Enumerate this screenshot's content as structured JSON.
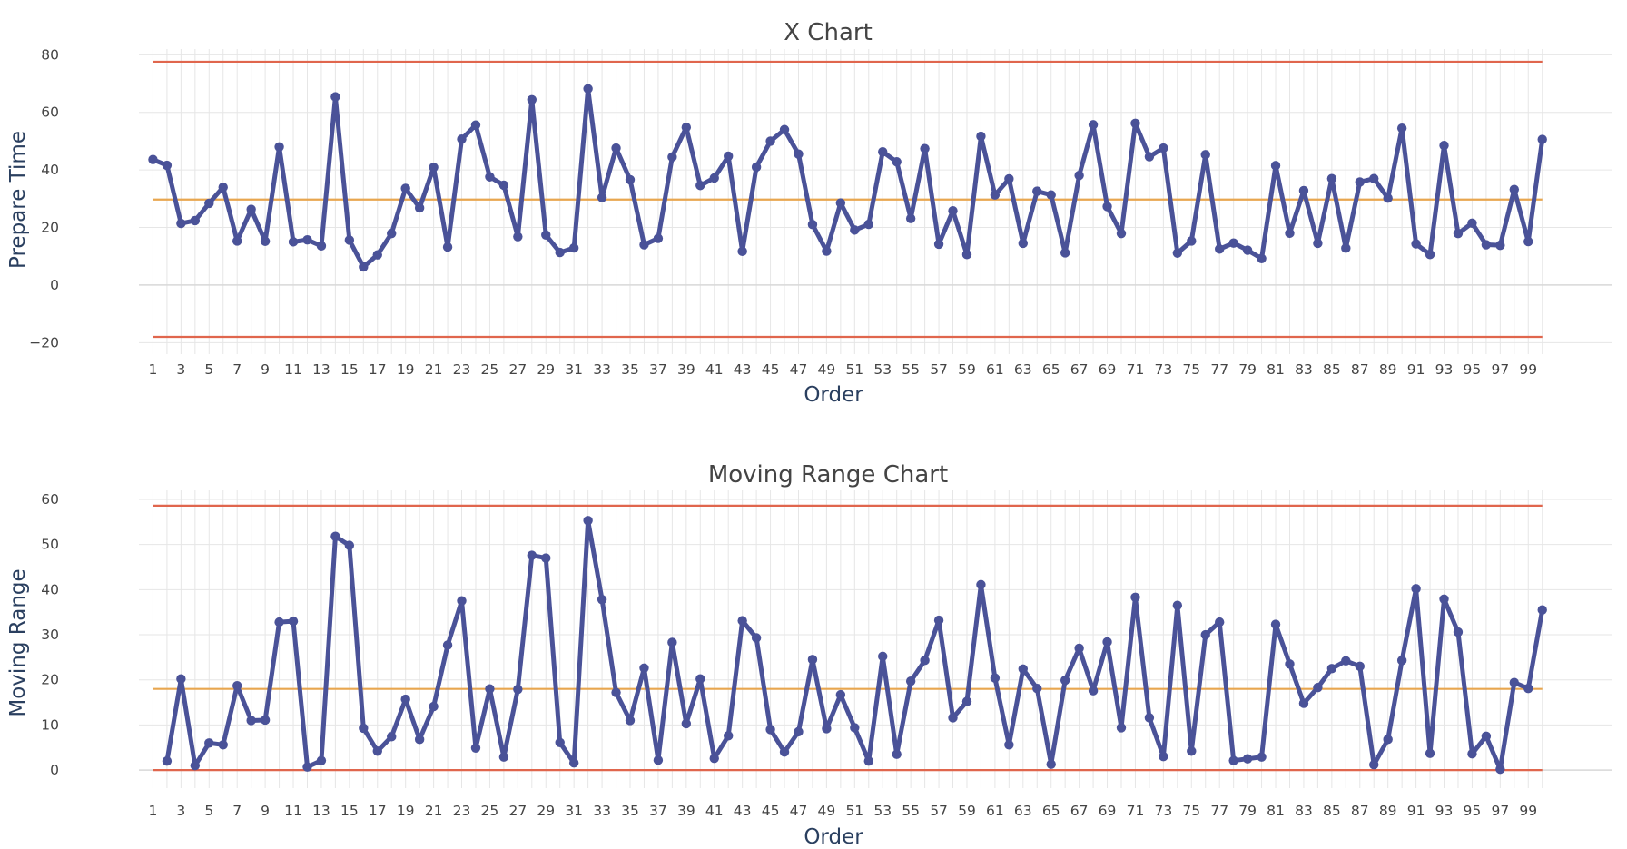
{
  "chart_data": [
    {
      "type": "line",
      "title": "X Chart",
      "xlabel": "Order",
      "ylabel": "Prepare Time",
      "ylim": [
        -24,
        82
      ],
      "yticks": [
        -20,
        0,
        20,
        40,
        60,
        80
      ],
      "xlim": [
        0,
        105
      ],
      "xticks": [
        1,
        3,
        5,
        7,
        9,
        11,
        13,
        15,
        17,
        19,
        21,
        23,
        25,
        27,
        29,
        31,
        33,
        35,
        37,
        39,
        41,
        43,
        45,
        47,
        49,
        51,
        53,
        55,
        57,
        59,
        61,
        63,
        65,
        67,
        69,
        71,
        73,
        75,
        77,
        79,
        81,
        83,
        85,
        87,
        89,
        91,
        93,
        95,
        97,
        99
      ],
      "grid": true,
      "colors": {
        "series": "#4a5298",
        "limits": "#e0664d",
        "center": "#e8a64f"
      },
      "limits": {
        "ucl": 77.6,
        "center": 29.7,
        "lcl": -18.0
      },
      "limit_span": [
        1,
        100
      ],
      "series": [
        {
          "x": [
            1,
            2,
            3,
            4,
            5,
            6,
            7,
            8,
            9,
            10,
            11,
            12,
            13,
            14,
            15,
            16,
            17,
            18,
            19,
            20,
            21,
            22,
            23,
            24,
            25,
            26,
            27,
            28,
            29,
            30,
            31,
            32,
            33,
            34,
            35,
            36,
            37,
            38,
            39,
            40,
            41,
            42,
            43,
            44,
            45,
            46,
            47,
            48,
            49,
            50,
            51,
            52,
            53,
            54,
            55,
            56,
            57,
            58,
            59,
            60,
            61,
            62,
            63,
            64,
            65,
            66,
            67,
            68,
            69,
            70,
            71,
            72,
            73,
            74,
            75,
            76,
            77,
            78,
            79,
            80,
            81,
            82,
            83,
            84,
            85,
            86,
            87,
            88,
            89,
            90,
            91,
            92,
            93,
            94,
            95,
            96,
            97,
            98,
            99,
            100
          ],
          "values": [
            43.6,
            41.6,
            21.4,
            22.4,
            28.4,
            34.0,
            15.3,
            26.3,
            15.2,
            48.0,
            15.0,
            15.7,
            13.6,
            65.4,
            15.6,
            6.3,
            10.5,
            17.9,
            33.6,
            26.8,
            40.9,
            13.2,
            50.7,
            55.6,
            37.6,
            34.7,
            16.8,
            64.4,
            17.4,
            11.3,
            12.9,
            68.2,
            30.4,
            47.6,
            36.6,
            14.0,
            16.2,
            44.5,
            54.8,
            34.6,
            37.2,
            44.8,
            11.7,
            41.0,
            50.0,
            54.0,
            45.5,
            21.0,
            11.8,
            28.5,
            19.1,
            21.1,
            46.3,
            42.8,
            23.1,
            47.4,
            14.2,
            25.8,
            10.6,
            51.7,
            31.3,
            36.9,
            14.5,
            32.6,
            31.3,
            11.2,
            38.1,
            55.7,
            27.3,
            17.9,
            56.2,
            44.6,
            47.6,
            11.1,
            15.3,
            45.3,
            12.5,
            14.6,
            12.1,
            9.2,
            41.5,
            18.0,
            32.8,
            14.5,
            37.0,
            12.8,
            35.8,
            37.0,
            30.2,
            54.5,
            14.3,
            10.6,
            48.5,
            17.9,
            21.5,
            14.0,
            13.8,
            33.2,
            15.1,
            50.6
          ]
        }
      ]
    },
    {
      "type": "line",
      "title": "Moving Range Chart",
      "xlabel": "Order",
      "ylabel": "Moving Range",
      "ylim": [
        -4,
        62
      ],
      "yticks": [
        0,
        10,
        20,
        30,
        40,
        50,
        60
      ],
      "xlim": [
        0,
        105
      ],
      "xticks": [
        1,
        3,
        5,
        7,
        9,
        11,
        13,
        15,
        17,
        19,
        21,
        23,
        25,
        27,
        29,
        31,
        33,
        35,
        37,
        39,
        41,
        43,
        45,
        47,
        49,
        51,
        53,
        55,
        57,
        59,
        61,
        63,
        65,
        67,
        69,
        71,
        73,
        75,
        77,
        79,
        81,
        83,
        85,
        87,
        89,
        91,
        93,
        95,
        97,
        99
      ],
      "grid": true,
      "colors": {
        "series": "#4a5298",
        "limits": "#e0664d",
        "center": "#e8a64f"
      },
      "limits": {
        "ucl": 58.6,
        "center": 18.0,
        "lcl": 0
      },
      "limit_span": [
        1,
        100
      ],
      "series": [
        {
          "x": [
            2,
            3,
            4,
            5,
            6,
            7,
            8,
            9,
            10,
            11,
            12,
            13,
            14,
            15,
            16,
            17,
            18,
            19,
            20,
            21,
            22,
            23,
            24,
            25,
            26,
            27,
            28,
            29,
            30,
            31,
            32,
            33,
            34,
            35,
            36,
            37,
            38,
            39,
            40,
            41,
            42,
            43,
            44,
            45,
            46,
            47,
            48,
            49,
            50,
            51,
            52,
            53,
            54,
            55,
            56,
            57,
            58,
            59,
            60,
            61,
            62,
            63,
            64,
            65,
            66,
            67,
            68,
            69,
            70,
            71,
            72,
            73,
            74,
            75,
            76,
            77,
            78,
            79,
            80,
            81,
            82,
            83,
            84,
            85,
            86,
            87,
            88,
            89,
            90,
            91,
            92,
            93,
            94,
            95,
            96,
            97,
            98,
            99,
            100
          ],
          "values": [
            2.0,
            20.2,
            1.0,
            6.0,
            5.6,
            18.7,
            11.0,
            11.1,
            32.8,
            33.0,
            0.7,
            2.1,
            51.8,
            49.8,
            9.3,
            4.2,
            7.4,
            15.7,
            6.8,
            14.1,
            27.7,
            37.5,
            4.9,
            18.0,
            2.9,
            17.9,
            47.6,
            47.0,
            6.1,
            1.6,
            55.3,
            37.8,
            17.2,
            11.0,
            22.6,
            2.2,
            28.3,
            10.3,
            20.2,
            2.6,
            7.6,
            33.1,
            29.3,
            9.0,
            4.0,
            8.5,
            24.5,
            9.2,
            16.7,
            9.4,
            2.0,
            25.2,
            3.5,
            19.7,
            24.3,
            33.2,
            11.6,
            15.2,
            41.1,
            20.4,
            5.6,
            22.4,
            18.1,
            1.3,
            19.9,
            27.0,
            17.6,
            28.4,
            9.4,
            38.3,
            11.6,
            3.0,
            36.5,
            4.2,
            30.0,
            32.8,
            2.1,
            2.5,
            2.9,
            32.3,
            23.5,
            14.8,
            18.3,
            22.5,
            24.2,
            23.0,
            1.2,
            6.8,
            24.3,
            40.2,
            3.7,
            37.9,
            30.6,
            3.6,
            7.5,
            0.2,
            19.4,
            18.1,
            35.5
          ]
        }
      ]
    }
  ]
}
